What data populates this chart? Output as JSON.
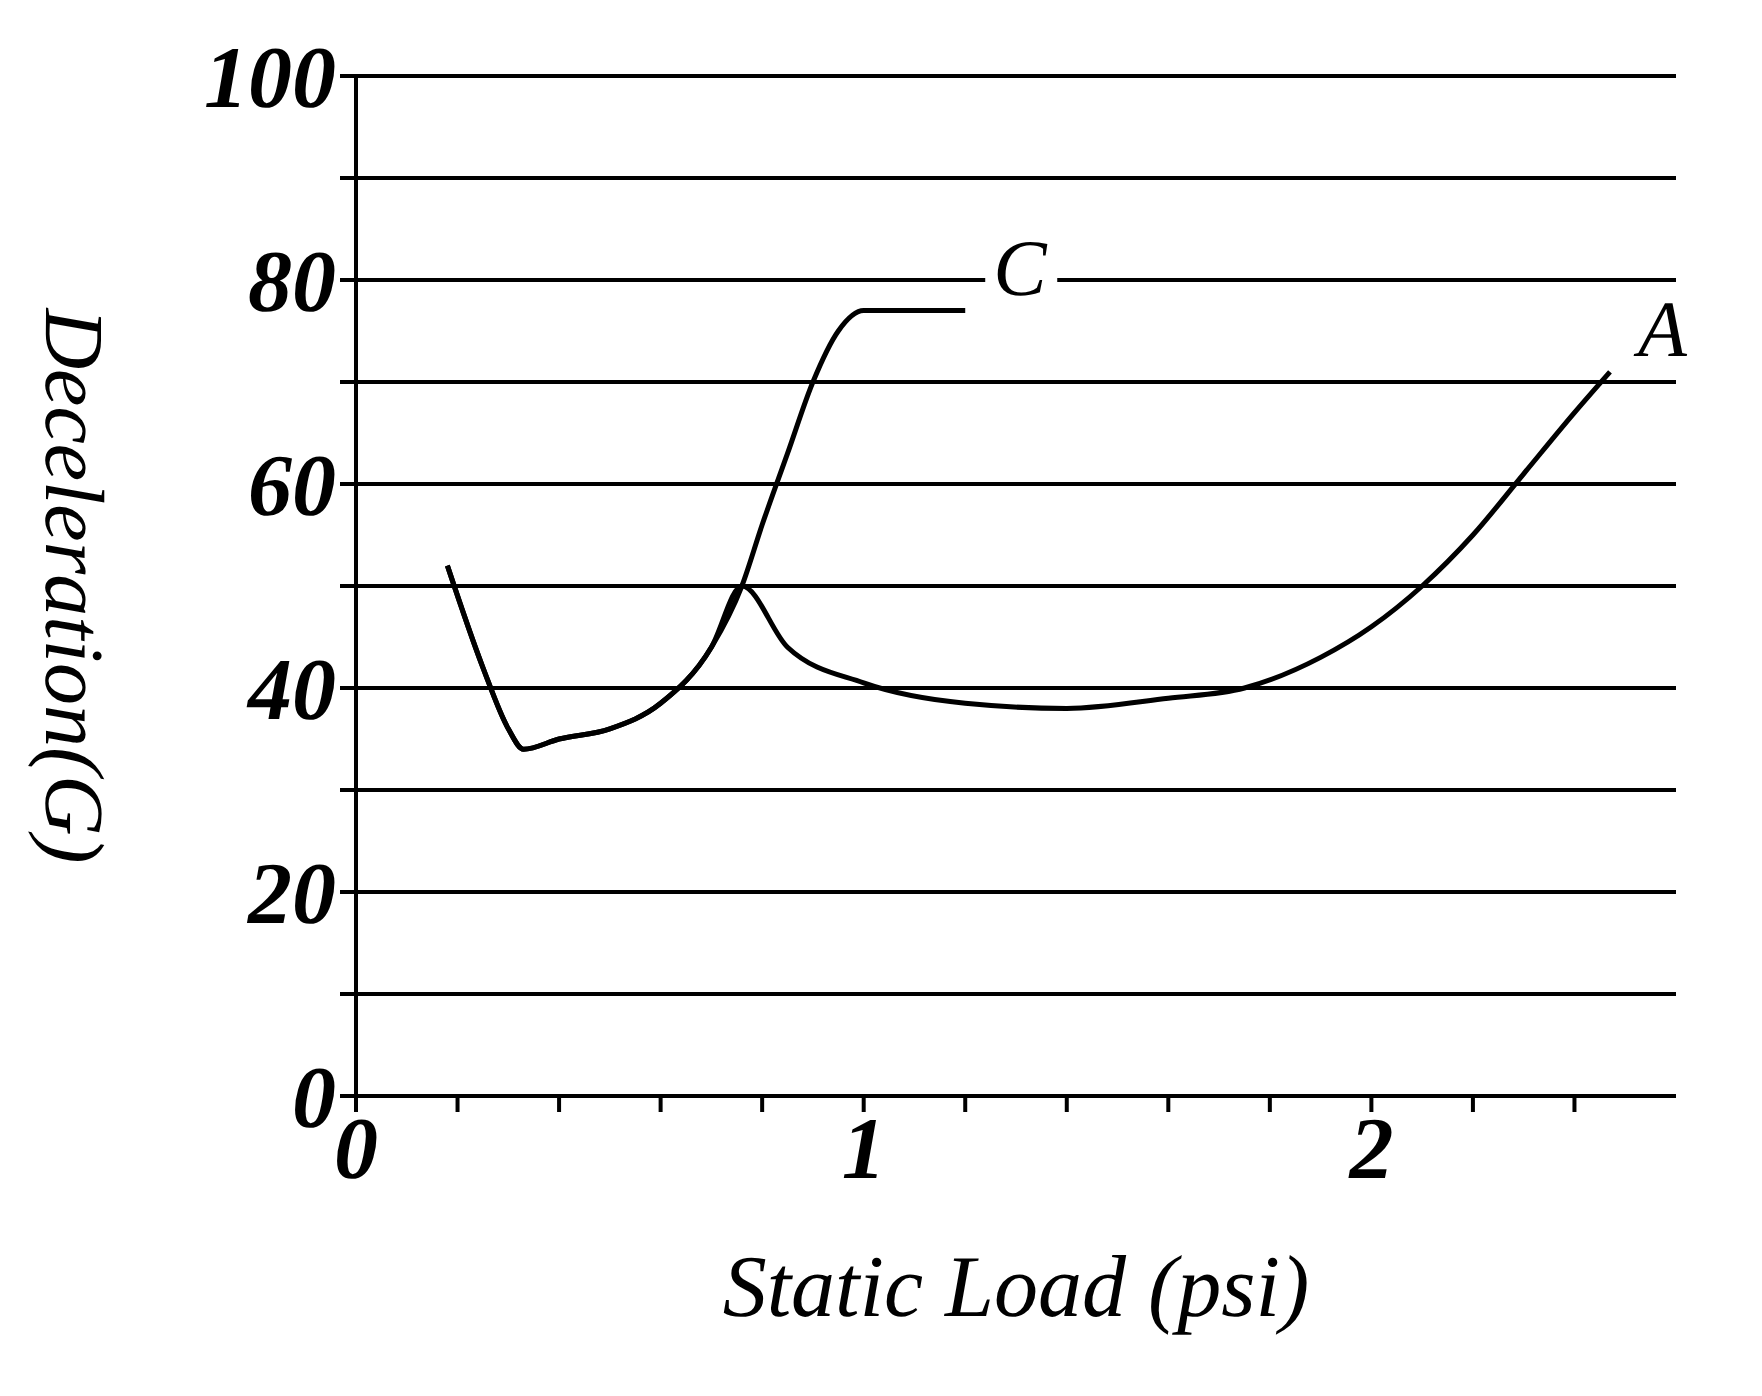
{
  "chart_data": {
    "type": "line",
    "xlabel": "Static Load (psi)",
    "ylabel": "Deceleration(G)",
    "xlim": [
      0,
      2.6
    ],
    "ylim": [
      0,
      100
    ],
    "xticks": [
      0,
      {
        "value": 0.2,
        "label": null
      },
      {
        "value": 0.4,
        "label": null
      },
      {
        "value": 0.6,
        "label": null
      },
      {
        "value": 0.8,
        "label": null
      },
      1,
      {
        "value": 1.2,
        "label": null
      },
      {
        "value": 1.4,
        "label": null
      },
      {
        "value": 1.6,
        "label": null
      },
      {
        "value": 1.8,
        "label": null
      },
      2,
      {
        "value": 2.2,
        "label": null
      },
      {
        "value": 2.4,
        "label": null
      }
    ],
    "yticks": [
      0,
      {
        "value": 10,
        "label": null
      },
      20,
      {
        "value": 30,
        "label": null
      },
      40,
      {
        "value": 50,
        "label": null
      },
      60,
      {
        "value": 70,
        "label": null
      },
      80,
      {
        "value": 90,
        "label": null
      },
      100
    ],
    "grid": "y",
    "legend": false,
    "marker": "none",
    "line_style": "solid",
    "series": [
      {
        "name": "C",
        "color": "#000000",
        "x": [
          0.18,
          0.25,
          0.3,
          0.33,
          0.4,
          0.5,
          0.6,
          0.7,
          0.76,
          0.8,
          0.85,
          0.9,
          0.95,
          1.0,
          1.05,
          1.2
        ],
        "values": [
          52,
          42,
          36,
          34,
          35,
          36,
          38.5,
          44,
          50,
          56,
          63,
          70,
          75,
          77,
          77,
          77
        ]
      },
      {
        "name": "A",
        "color": "#000000",
        "x": [
          0.18,
          0.25,
          0.3,
          0.33,
          0.4,
          0.5,
          0.6,
          0.7,
          0.76,
          0.85,
          1.0,
          1.2,
          1.4,
          1.6,
          1.75,
          1.9,
          2.0,
          2.1,
          2.2,
          2.3,
          2.4,
          2.47
        ],
        "values": [
          52,
          42,
          36,
          34,
          35,
          36,
          38.5,
          44,
          50,
          44,
          40.5,
          38.5,
          38,
          39,
          40,
          43,
          46,
          50,
          55,
          61,
          67,
          71
        ]
      }
    ]
  }
}
